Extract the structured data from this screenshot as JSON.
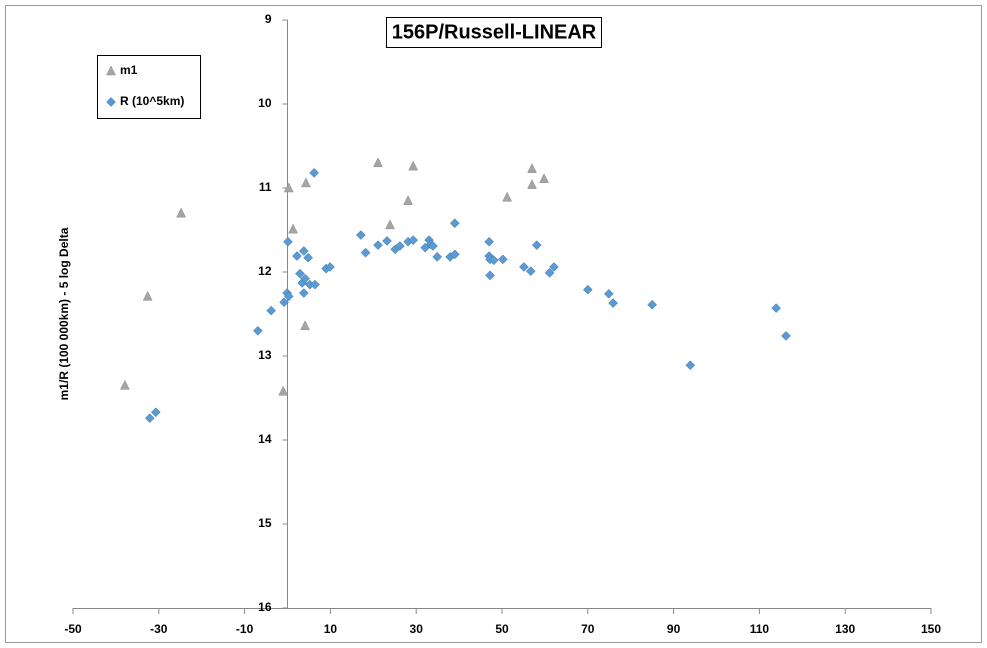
{
  "chart_data": {
    "type": "scatter",
    "title": "156P/Russell-LINEAR",
    "y_label": "m1/R (100 000km) - 5 log Delta",
    "xlim": [
      -50,
      150
    ],
    "xticks": [
      -50,
      -30,
      -10,
      10,
      30,
      50,
      70,
      90,
      110,
      130,
      150
    ],
    "ylim": [
      16,
      9
    ],
    "yticks": [
      9,
      10,
      11,
      12,
      13,
      14,
      15,
      16
    ],
    "legend": "top-left",
    "series": [
      {
        "name": "m1",
        "color": "#a5a5a5",
        "marker": "triangle",
        "x": [
          -37.9,
          -32.6,
          -24.8,
          -1.0,
          0.3,
          1.3,
          4.1,
          4.3,
          21.1,
          23.9,
          28.1,
          29.3,
          51.2,
          57.0,
          57.0,
          59.8
        ],
        "values": [
          13.35,
          12.29,
          11.3,
          13.42,
          11.0,
          11.49,
          12.64,
          10.94,
          10.7,
          11.44,
          11.15,
          10.74,
          11.11,
          10.77,
          10.96,
          10.89
        ]
      },
      {
        "name": "R (10^5km)",
        "color": "#5b9bd5",
        "marker": "diamond",
        "x": [
          -32.1,
          -30.7,
          -6.9,
          -3.8,
          -0.8,
          -0.1,
          0.3,
          0.1,
          2.2,
          2.9,
          3.4,
          3.8,
          4.1,
          3.8,
          4.8,
          5.2,
          6.4,
          6.2,
          9.0,
          9.9,
          17.1,
          18.2,
          21.1,
          23.2,
          25.1,
          26.2,
          28.1,
          29.3,
          32.1,
          33.0,
          33.4,
          33.9,
          34.9,
          37.9,
          39.0,
          39.0,
          47.0,
          47.0,
          47.2,
          47.2,
          48.1,
          50.2,
          55.1,
          56.7,
          58.1,
          61.1,
          62.1,
          70.0,
          74.9,
          75.9,
          85.0,
          93.9,
          113.9,
          116.2
        ],
        "values": [
          13.74,
          13.67,
          12.7,
          12.46,
          12.36,
          12.25,
          12.29,
          11.64,
          11.81,
          12.02,
          12.13,
          11.75,
          12.08,
          12.25,
          11.83,
          12.15,
          12.15,
          10.82,
          11.96,
          11.94,
          11.56,
          11.77,
          11.68,
          11.63,
          11.73,
          11.69,
          11.64,
          11.62,
          11.71,
          11.62,
          11.67,
          11.69,
          11.82,
          11.82,
          11.79,
          11.42,
          11.64,
          11.81,
          11.85,
          12.04,
          11.86,
          11.85,
          11.94,
          11.99,
          11.68,
          12.01,
          11.94,
          12.21,
          12.26,
          12.37,
          12.39,
          13.11,
          12.43,
          12.76
        ]
      }
    ]
  }
}
